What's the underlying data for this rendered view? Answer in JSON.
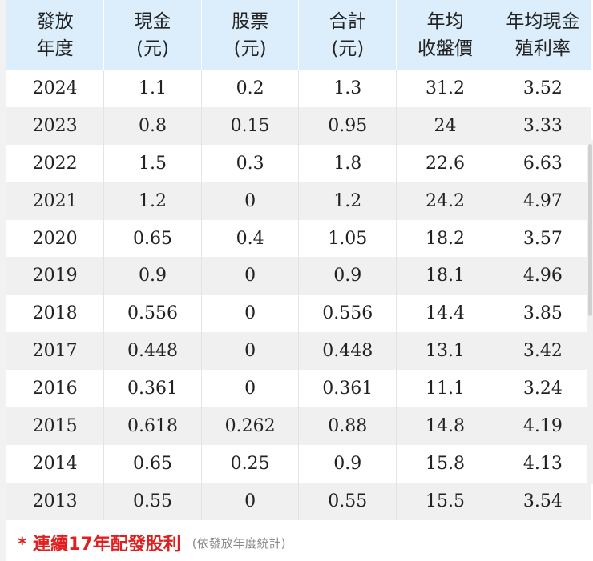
{
  "table": {
    "headers": [
      {
        "line1": "發放",
        "line2": "年度"
      },
      {
        "line1": "現金",
        "line2": "(元)"
      },
      {
        "line1": "股票",
        "line2": "(元)"
      },
      {
        "line1": "合計",
        "line2": "(元)"
      },
      {
        "line1": "年均",
        "line2": "收盤價"
      },
      {
        "line1": "年均現金",
        "line2": "殖利率"
      }
    ],
    "rows": [
      [
        "2024",
        "1.1",
        "0.2",
        "1.3",
        "31.2",
        "3.52"
      ],
      [
        "2023",
        "0.8",
        "0.15",
        "0.95",
        "24",
        "3.33"
      ],
      [
        "2022",
        "1.5",
        "0.3",
        "1.8",
        "22.6",
        "6.63"
      ],
      [
        "2021",
        "1.2",
        "0",
        "1.2",
        "24.2",
        "4.97"
      ],
      [
        "2020",
        "0.65",
        "0.4",
        "1.05",
        "18.2",
        "3.57"
      ],
      [
        "2019",
        "0.9",
        "0",
        "0.9",
        "18.1",
        "4.96"
      ],
      [
        "2018",
        "0.556",
        "0",
        "0.556",
        "14.4",
        "3.85"
      ],
      [
        "2017",
        "0.448",
        "0",
        "0.448",
        "13.1",
        "3.42"
      ],
      [
        "2016",
        "0.361",
        "0",
        "0.361",
        "11.1",
        "3.24"
      ],
      [
        "2015",
        "0.618",
        "0.262",
        "0.88",
        "14.8",
        "4.19"
      ],
      [
        "2014",
        "0.65",
        "0.25",
        "0.9",
        "15.8",
        "4.13"
      ],
      [
        "2013",
        "0.55",
        "0",
        "0.55",
        "15.5",
        "3.54"
      ]
    ]
  },
  "footnote": {
    "main": "* 連續17年配發股利",
    "sub": "(依發放年度統計)"
  },
  "colors": {
    "header_bg": "#dceefc",
    "row_alt_bg": "#f0f0f0",
    "footnote_red": "#e02020",
    "footnote_gray": "#8a8a8a"
  }
}
